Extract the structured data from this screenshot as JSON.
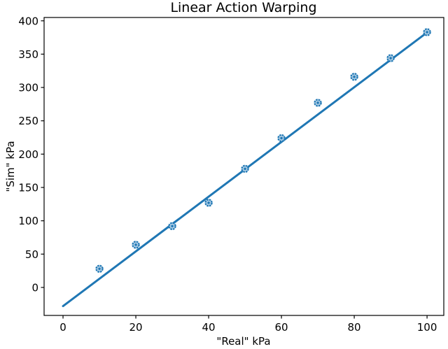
{
  "chart_data": {
    "type": "scatter",
    "title": "Linear Action Warping",
    "xlabel": "\"Real\" kPa",
    "ylabel": "\"Sim\" kPa",
    "x": [
      10,
      20,
      30,
      40,
      50,
      60,
      70,
      80,
      90,
      100
    ],
    "y": [
      28,
      64,
      92,
      127,
      178,
      224,
      277,
      316,
      344,
      383
    ],
    "series": [
      {
        "name": "data-points",
        "style": "ring-marker"
      },
      {
        "name": "linear-fit-line",
        "style": "line",
        "x": [
          0,
          100
        ],
        "y": [
          -28,
          382.5
        ]
      }
    ],
    "xticks": [
      0,
      20,
      40,
      60,
      80,
      100
    ],
    "yticks": [
      0,
      50,
      100,
      150,
      200,
      250,
      300,
      350,
      400
    ],
    "xlim": [
      -5.2,
      104.6
    ],
    "ylim": [
      -42,
      405
    ],
    "grid": false,
    "legend": null,
    "colors": {
      "accent": "#1f77b4",
      "marker_fill": "#a9cbe4",
      "spine": "#000000",
      "background": "#ffffff"
    }
  }
}
